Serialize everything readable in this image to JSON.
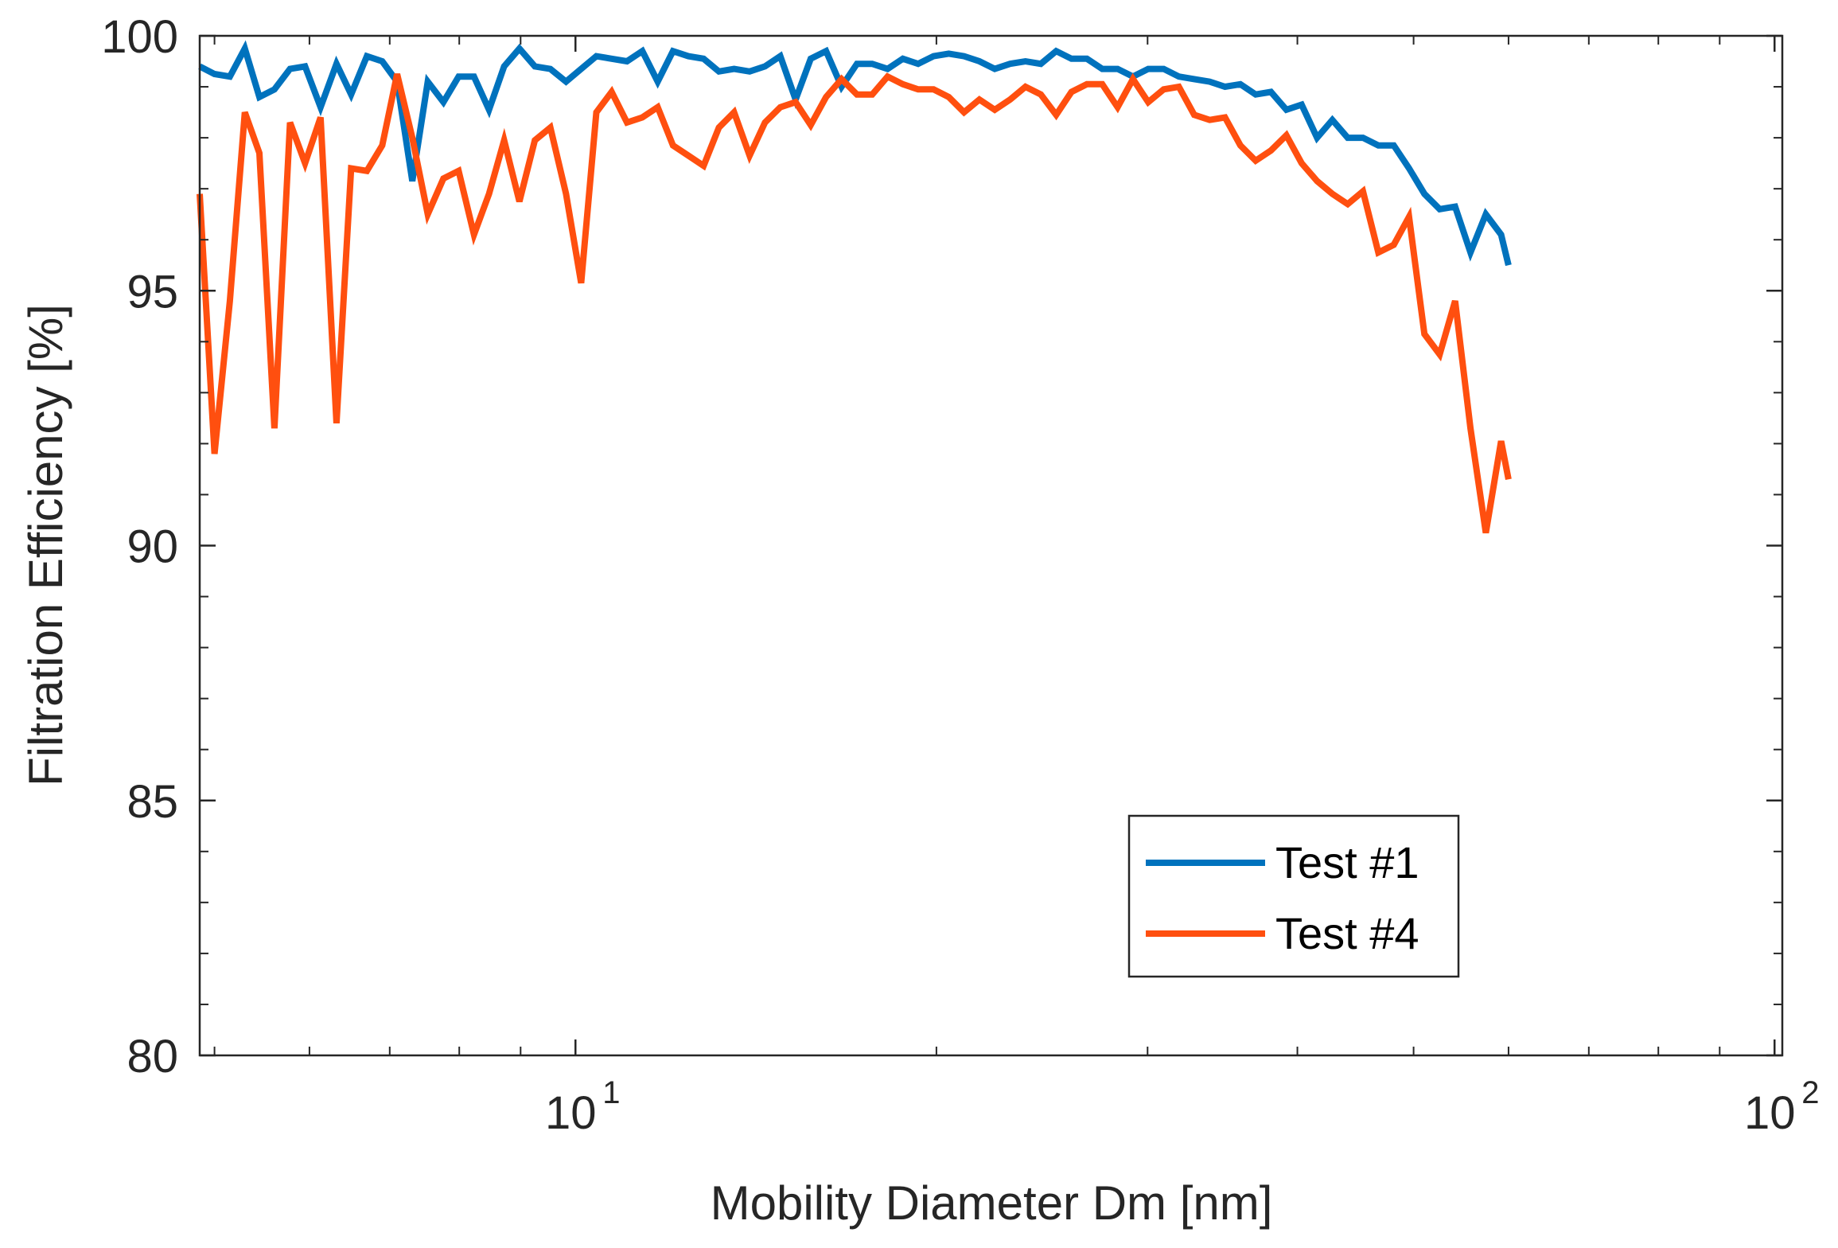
{
  "chart_data": {
    "type": "line",
    "title": "",
    "xlabel": "Mobility Diameter Dm [nm]",
    "ylabel": "Filtration Efficiency [%]",
    "xscale": "log",
    "xlim": [
      4.86,
      101.5
    ],
    "ylim": [
      80,
      100
    ],
    "grid": false,
    "legend_position": "bottom-right",
    "x_ticks": [
      {
        "value": 10,
        "base": "10",
        "exp": "1"
      },
      {
        "value": 100,
        "base": "10",
        "exp": "2"
      }
    ],
    "y_ticks": [
      {
        "value": 80,
        "label": "80"
      },
      {
        "value": 85,
        "label": "85"
      },
      {
        "value": 90,
        "label": "90"
      },
      {
        "value": 95,
        "label": "95"
      },
      {
        "value": 100,
        "label": "100"
      }
    ],
    "series": [
      {
        "name": "Test #1",
        "color": "#0072BD",
        "points": [
          [
            4.86,
            99.4
          ],
          [
            5.0,
            99.25
          ],
          [
            5.15,
            99.2
          ],
          [
            5.3,
            99.75
          ],
          [
            5.45,
            98.8
          ],
          [
            5.61,
            98.95
          ],
          [
            5.78,
            99.35
          ],
          [
            5.95,
            99.4
          ],
          [
            6.13,
            98.6
          ],
          [
            6.32,
            99.45
          ],
          [
            6.5,
            98.85
          ],
          [
            6.7,
            99.6
          ],
          [
            6.9,
            99.5
          ],
          [
            7.1,
            99.1
          ],
          [
            7.31,
            97.15
          ],
          [
            7.53,
            99.1
          ],
          [
            7.76,
            98.7
          ],
          [
            7.99,
            99.2
          ],
          [
            8.23,
            99.2
          ],
          [
            8.47,
            98.55
          ],
          [
            8.72,
            99.4
          ],
          [
            8.98,
            99.75
          ],
          [
            9.25,
            99.4
          ],
          [
            9.53,
            99.35
          ],
          [
            9.82,
            99.1
          ],
          [
            10.11,
            99.35
          ],
          [
            10.41,
            99.6
          ],
          [
            10.72,
            99.55
          ],
          [
            11.04,
            99.5
          ],
          [
            11.37,
            99.7
          ],
          [
            11.71,
            99.1
          ],
          [
            12.06,
            99.7
          ],
          [
            12.42,
            99.6
          ],
          [
            12.79,
            99.55
          ],
          [
            13.17,
            99.3
          ],
          [
            13.56,
            99.35
          ],
          [
            13.97,
            99.3
          ],
          [
            14.39,
            99.4
          ],
          [
            14.82,
            99.6
          ],
          [
            15.26,
            98.75
          ],
          [
            15.71,
            99.55
          ],
          [
            16.18,
            99.7
          ],
          [
            16.67,
            99.0
          ],
          [
            17.17,
            99.45
          ],
          [
            17.68,
            99.45
          ],
          [
            18.21,
            99.35
          ],
          [
            18.75,
            99.55
          ],
          [
            19.31,
            99.45
          ],
          [
            19.89,
            99.6
          ],
          [
            20.48,
            99.65
          ],
          [
            21.09,
            99.6
          ],
          [
            21.72,
            99.5
          ],
          [
            22.37,
            99.35
          ],
          [
            23.04,
            99.45
          ],
          [
            23.73,
            99.5
          ],
          [
            24.44,
            99.45
          ],
          [
            25.17,
            99.7
          ],
          [
            25.92,
            99.55
          ],
          [
            26.7,
            99.55
          ],
          [
            27.5,
            99.35
          ],
          [
            28.32,
            99.35
          ],
          [
            29.17,
            99.2
          ],
          [
            30.04,
            99.35
          ],
          [
            30.94,
            99.35
          ],
          [
            31.86,
            99.2
          ],
          [
            32.81,
            99.15
          ],
          [
            33.8,
            99.1
          ],
          [
            34.81,
            99.0
          ],
          [
            35.85,
            99.05
          ],
          [
            36.92,
            98.85
          ],
          [
            38.02,
            98.9
          ],
          [
            39.16,
            98.55
          ],
          [
            40.33,
            98.65
          ],
          [
            41.54,
            98.0
          ],
          [
            42.78,
            98.35
          ],
          [
            44.06,
            98.0
          ],
          [
            45.37,
            98.0
          ],
          [
            46.73,
            97.85
          ],
          [
            48.13,
            97.85
          ],
          [
            49.57,
            97.4
          ],
          [
            51.05,
            96.9
          ],
          [
            52.57,
            96.6
          ],
          [
            54.15,
            96.65
          ],
          [
            55.77,
            95.75
          ],
          [
            57.44,
            96.5
          ],
          [
            59.15,
            96.1
          ],
          [
            60.0,
            95.5
          ]
        ]
      },
      {
        "name": "Test #4",
        "color": "#FF4F0F",
        "points": [
          [
            4.86,
            96.9
          ],
          [
            5.0,
            91.8
          ],
          [
            5.15,
            94.8
          ],
          [
            5.3,
            98.5
          ],
          [
            5.45,
            97.7
          ],
          [
            5.61,
            92.3
          ],
          [
            5.78,
            98.3
          ],
          [
            5.95,
            97.5
          ],
          [
            6.13,
            98.4
          ],
          [
            6.32,
            92.4
          ],
          [
            6.5,
            97.4
          ],
          [
            6.7,
            97.35
          ],
          [
            6.9,
            97.85
          ],
          [
            7.1,
            99.25
          ],
          [
            7.31,
            98.0
          ],
          [
            7.53,
            96.5
          ],
          [
            7.76,
            97.2
          ],
          [
            7.99,
            97.35
          ],
          [
            8.23,
            96.1
          ],
          [
            8.47,
            96.9
          ],
          [
            8.72,
            97.95
          ],
          [
            8.98,
            96.75
          ],
          [
            9.25,
            97.95
          ],
          [
            9.53,
            98.2
          ],
          [
            9.82,
            96.9
          ],
          [
            10.11,
            95.15
          ],
          [
            10.41,
            98.5
          ],
          [
            10.72,
            98.9
          ],
          [
            11.04,
            98.3
          ],
          [
            11.37,
            98.4
          ],
          [
            11.71,
            98.6
          ],
          [
            12.06,
            97.85
          ],
          [
            12.42,
            97.65
          ],
          [
            12.79,
            97.45
          ],
          [
            13.17,
            98.2
          ],
          [
            13.56,
            98.5
          ],
          [
            13.97,
            97.65
          ],
          [
            14.39,
            98.3
          ],
          [
            14.82,
            98.6
          ],
          [
            15.26,
            98.7
          ],
          [
            15.71,
            98.25
          ],
          [
            16.18,
            98.8
          ],
          [
            16.67,
            99.15
          ],
          [
            17.17,
            98.85
          ],
          [
            17.68,
            98.85
          ],
          [
            18.21,
            99.2
          ],
          [
            18.75,
            99.05
          ],
          [
            19.31,
            98.95
          ],
          [
            19.89,
            98.95
          ],
          [
            20.48,
            98.8
          ],
          [
            21.09,
            98.5
          ],
          [
            21.72,
            98.75
          ],
          [
            22.37,
            98.55
          ],
          [
            23.04,
            98.75
          ],
          [
            23.73,
            99.0
          ],
          [
            24.44,
            98.85
          ],
          [
            25.17,
            98.45
          ],
          [
            25.92,
            98.9
          ],
          [
            26.7,
            99.05
          ],
          [
            27.5,
            99.05
          ],
          [
            28.32,
            98.6
          ],
          [
            29.17,
            99.15
          ],
          [
            30.04,
            98.7
          ],
          [
            30.94,
            98.95
          ],
          [
            31.86,
            99.0
          ],
          [
            32.81,
            98.45
          ],
          [
            33.8,
            98.35
          ],
          [
            34.81,
            98.4
          ],
          [
            35.85,
            97.85
          ],
          [
            36.92,
            97.55
          ],
          [
            38.02,
            97.75
          ],
          [
            39.16,
            98.05
          ],
          [
            40.33,
            97.5
          ],
          [
            41.54,
            97.15
          ],
          [
            42.78,
            96.9
          ],
          [
            44.06,
            96.7
          ],
          [
            45.37,
            96.95
          ],
          [
            46.73,
            95.75
          ],
          [
            48.13,
            95.9
          ],
          [
            49.57,
            96.45
          ],
          [
            51.05,
            94.15
          ],
          [
            52.57,
            93.75
          ],
          [
            54.15,
            94.8
          ],
          [
            55.77,
            92.3
          ],
          [
            57.44,
            90.25
          ],
          [
            59.15,
            92.05
          ],
          [
            60.0,
            91.3
          ]
        ]
      }
    ]
  }
}
